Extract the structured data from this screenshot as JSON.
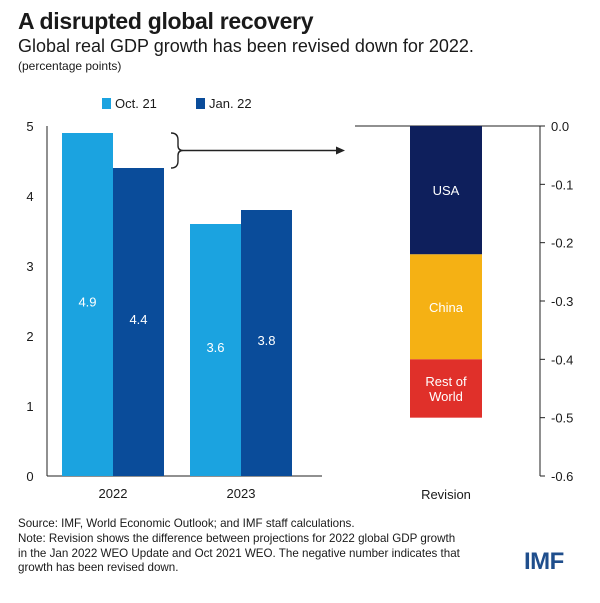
{
  "header": {
    "title": "A disrupted global recovery",
    "subtitle": "Global real GDP growth has been revised down for 2022.",
    "units": "(percentage points)"
  },
  "colors": {
    "oct21": "#1ba3e0",
    "jan22": "#0a4c9a",
    "usa": "#0e1f5c",
    "china": "#f5b114",
    "rest": "#e0302a",
    "axis": "#222222"
  },
  "chart_data": [
    {
      "type": "bar",
      "title": "",
      "categories": [
        "2022",
        "2023"
      ],
      "series": [
        {
          "name": "Oct. 21",
          "values": [
            4.9,
            3.6
          ]
        },
        {
          "name": "Jan. 22",
          "values": [
            4.4,
            3.8
          ]
        }
      ],
      "data_labels": [
        [
          "4.9",
          "3.6"
        ],
        [
          "4.4",
          "3.8"
        ]
      ],
      "ylim": [
        0,
        5
      ],
      "yticks": [
        "0",
        "1",
        "2",
        "3",
        "4",
        "5"
      ],
      "xlabel": "",
      "ylabel": "",
      "legend": "top-left"
    },
    {
      "type": "bar",
      "stacked": true,
      "categories": [
        "Revision"
      ],
      "segments": [
        {
          "name": "USA",
          "from": 0.0,
          "to": -0.22
        },
        {
          "name": "China",
          "from": -0.22,
          "to": -0.4
        },
        {
          "name": "Rest of World",
          "from": -0.4,
          "to": -0.5
        }
      ],
      "segment_labels": [
        [
          "USA"
        ],
        [
          "China"
        ],
        [
          "Rest of",
          "World"
        ]
      ],
      "ylim": [
        -0.6,
        0.0
      ],
      "yticks": [
        "0.0",
        "-0.1",
        "-0.2",
        "-0.3",
        "-0.4",
        "-0.5",
        "-0.6"
      ],
      "axis_position": "right"
    }
  ],
  "footer": {
    "source": "Source: IMF, World Economic Outlook; and IMF staff calculations.",
    "note_lines": [
      "Note: Revision shows the difference between projections for 2022 global GDP growth",
      "in the Jan 2022 WEO Update and Oct 2021 WEO. The negative number indicates that",
      "growth has been revised down."
    ],
    "logo": "IMF"
  }
}
